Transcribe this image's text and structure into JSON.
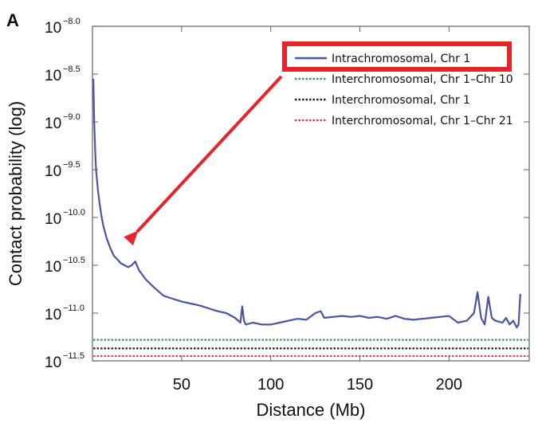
{
  "panel_label": "A",
  "chart_data": {
    "type": "line",
    "title": "",
    "xlabel": "Distance (Mb)",
    "ylabel": "Contact probability (log)",
    "xlim": [
      0,
      245
    ],
    "ylim": [
      -11.5,
      -8.0
    ],
    "x_ticks": [
      50,
      100,
      150,
      200
    ],
    "y_ticks": [
      {
        "value": -8.0,
        "base": "10",
        "exp": "−8.0"
      },
      {
        "value": -8.5,
        "base": "10",
        "exp": "−8.5"
      },
      {
        "value": -9.0,
        "base": "10",
        "exp": "−9.0"
      },
      {
        "value": -9.5,
        "base": "10",
        "exp": "−9.5"
      },
      {
        "value": -10.0,
        "base": "10",
        "exp": "−10.0"
      },
      {
        "value": -10.5,
        "base": "10",
        "exp": "−10.5"
      },
      {
        "value": -11.0,
        "base": "10",
        "exp": "−11.0"
      },
      {
        "value": -11.5,
        "base": "10",
        "exp": "−11.5"
      }
    ],
    "series": [
      {
        "name": "Intrachromosomal, Chr 1",
        "color": "#4a55a2",
        "style": "solid",
        "x": [
          0.5,
          1,
          1.5,
          2,
          3,
          4,
          5,
          6,
          8,
          10,
          12,
          14,
          16,
          18,
          20,
          22,
          24,
          26,
          28,
          30,
          35,
          40,
          45,
          50,
          55,
          60,
          65,
          70,
          75,
          80,
          83,
          84,
          85,
          86,
          90,
          95,
          100,
          105,
          110,
          115,
          120,
          125,
          128,
          130,
          135,
          140,
          145,
          150,
          155,
          160,
          165,
          170,
          175,
          180,
          185,
          190,
          195,
          200,
          205,
          210,
          214,
          216,
          218,
          220,
          222,
          224,
          226,
          230,
          232,
          234,
          236,
          238,
          239,
          240
        ],
        "y": [
          -8.55,
          -9.0,
          -9.3,
          -9.5,
          -9.7,
          -9.85,
          -9.98,
          -10.08,
          -10.22,
          -10.32,
          -10.4,
          -10.44,
          -10.48,
          -10.5,
          -10.52,
          -10.5,
          -10.46,
          -10.55,
          -10.6,
          -10.65,
          -10.74,
          -10.82,
          -10.85,
          -10.88,
          -10.9,
          -10.92,
          -10.95,
          -10.98,
          -11.0,
          -11.05,
          -11.1,
          -10.93,
          -11.08,
          -11.12,
          -11.1,
          -11.12,
          -11.12,
          -11.1,
          -11.08,
          -11.06,
          -11.07,
          -11.0,
          -10.98,
          -11.05,
          -11.04,
          -11.03,
          -11.04,
          -11.03,
          -11.05,
          -11.04,
          -11.06,
          -11.03,
          -11.06,
          -11.07,
          -11.06,
          -11.05,
          -11.04,
          -11.03,
          -11.1,
          -11.08,
          -11.0,
          -10.78,
          -11.05,
          -11.12,
          -10.83,
          -11.05,
          -11.08,
          -11.1,
          -11.05,
          -11.12,
          -11.08,
          -11.15,
          -11.12,
          -10.8
        ]
      },
      {
        "name": "Interchromosomal, Chr 1–Chr 10",
        "color": "#3a9a52",
        "style": "dotted",
        "level": -11.28
      },
      {
        "name": "Interchromosomal, Chr 1",
        "color": "#222222",
        "style": "dotted",
        "level": -11.37
      },
      {
        "name": "Interchromosomal, Chr 1–Chr 21",
        "color": "#e04050",
        "style": "dotted",
        "level": -11.45
      }
    ],
    "legend_position": "top-right",
    "highlight": {
      "target": "Intrachromosomal, Chr 1",
      "box_color": "#e8232a",
      "arrow_color": "#e8232a"
    }
  }
}
